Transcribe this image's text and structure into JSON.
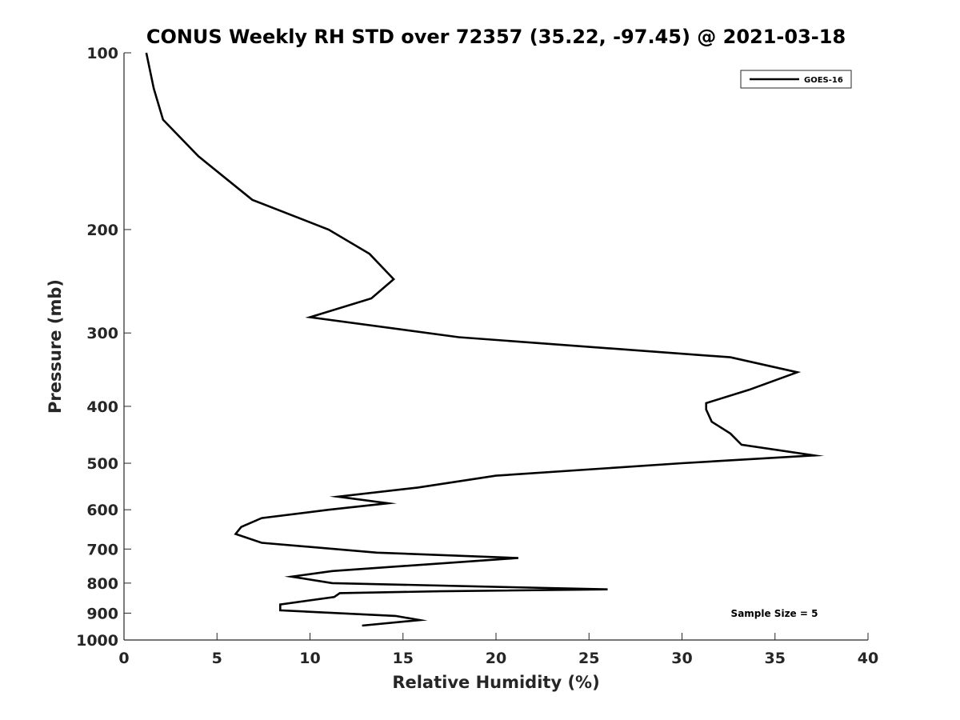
{
  "chart_data": {
    "type": "line",
    "title": "CONUS Weekly RH STD over 72357 (35.22, -97.45) @ 2021-03-18",
    "xlabel": "Relative Humidity (%)",
    "ylabel": "Pressure (mb)",
    "xlim": [
      0,
      40
    ],
    "ylim": [
      100,
      1000
    ],
    "y_scale": "log",
    "y_reversed": true,
    "x_ticks": [
      0,
      5,
      10,
      15,
      20,
      25,
      30,
      35,
      40
    ],
    "x_tick_labels": [
      "0",
      "5",
      "10",
      "15",
      "20",
      "25",
      "30",
      "35",
      "40"
    ],
    "y_ticks": [
      100,
      200,
      300,
      400,
      500,
      600,
      700,
      800,
      900,
      1000
    ],
    "y_tick_labels": [
      "100",
      "200",
      "300",
      "400",
      "500",
      "600",
      "700",
      "800",
      "900",
      "1000"
    ],
    "grid": false,
    "legend_position": "top-right",
    "annotation": "Sample Size = 5",
    "series": [
      {
        "name": "GOES-16",
        "color": "#000000",
        "x": [
          1.2,
          1.6,
          2.1,
          4.0,
          6.9,
          11.0,
          13.2,
          14.5,
          13.3,
          10.0,
          18.0,
          32.6,
          36.2,
          33.6,
          31.3,
          31.3,
          31.6,
          32.6,
          33.2,
          37.1,
          30.0,
          20.0,
          15.8,
          11.5,
          14.2,
          11.0,
          7.4,
          6.3,
          6.0,
          7.4,
          13.6,
          21.2,
          11.2,
          9.0,
          11.2,
          26.0,
          17.0,
          11.6,
          11.3,
          8.4,
          8.4,
          14.6,
          15.9,
          12.8
        ],
        "y": [
          100,
          115,
          130,
          150,
          178,
          200,
          220,
          243,
          262,
          282,
          305,
          330,
          350,
          375,
          395,
          405,
          425,
          445,
          465,
          485,
          500,
          525,
          550,
          570,
          585,
          600,
          620,
          642,
          660,
          683,
          710,
          725,
          763,
          780,
          800,
          820,
          826,
          832,
          845,
          870,
          890,
          910,
          925,
          945
        ]
      }
    ]
  }
}
